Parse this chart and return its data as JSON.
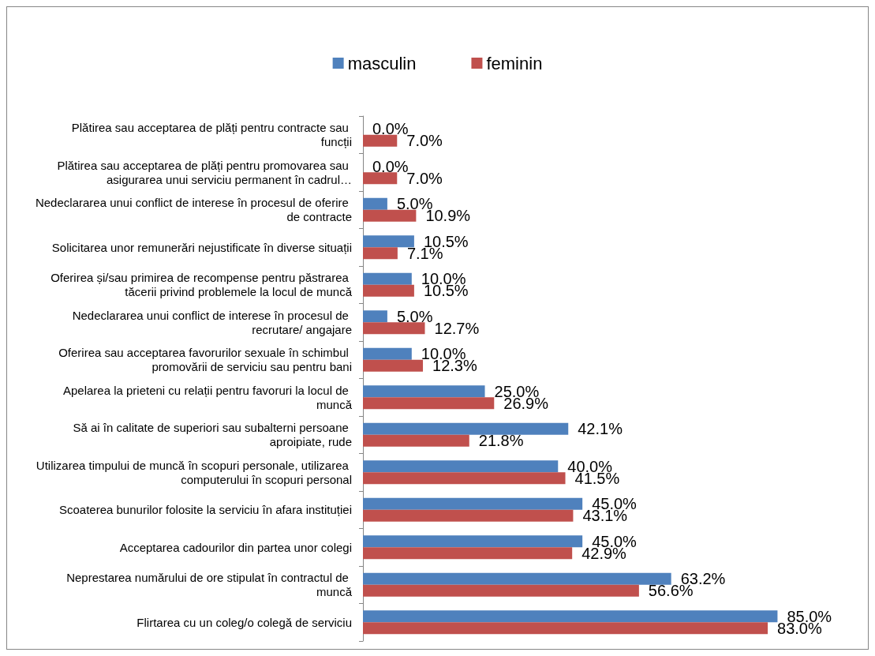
{
  "chart_data": {
    "type": "bar",
    "orientation": "horizontal",
    "categories": [
      "Plătirea sau acceptarea de plăți pentru contracte sau funcții",
      "Plătirea sau acceptarea de plăți pentru promovarea sau asigurarea unui serviciu permanent în cadrul…",
      "Nedeclararea unui conflict de interese în procesul de oferire de contracte",
      "Solicitarea unor remunerări nejustificate în diverse situații",
      "Oferirea și/sau primirea de recompense pentru păstrarea tăcerii privind problemele la locul de muncă",
      "Nedeclararea unui conflict de interese în procesul de recrutare/ angajare",
      "Oferirea sau acceptarea favorurilor sexuale în schimbul promovării de serviciu sau pentru bani",
      "Apelarea la prieteni cu relații pentru favoruri la locul de muncă",
      "Să ai în calitate de superiori sau subalterni persoane aproipiate, rude",
      "Utilizarea timpului de muncă în scopuri personale, utilizarea computerului în scopuri personal",
      "Scoaterea bunurilor folosite la serviciu în afara instituției",
      "Acceptarea cadourilor din partea unor colegi",
      "Neprestarea numărului de ore stipulat în contractul de muncă",
      "Flirtarea cu un coleg/o colegă de serviciu"
    ],
    "series": [
      {
        "name": "masculin",
        "color": "#4f81bd",
        "values": [
          0.0,
          0.0,
          5.0,
          10.5,
          10.0,
          5.0,
          10.0,
          25.0,
          42.1,
          40.0,
          45.0,
          45.0,
          63.2,
          85.0
        ],
        "value_labels": [
          "0.0%",
          "0.0%",
          "5.0%",
          "10.5%",
          "10.0%",
          "5.0%",
          "10.0%",
          "25.0%",
          "42.1%",
          "40.0%",
          "45.0%",
          "45.0%",
          "63.2%",
          "85.0%"
        ]
      },
      {
        "name": "feminin",
        "color": "#c0504d",
        "values": [
          7.0,
          7.0,
          10.9,
          7.1,
          10.5,
          12.7,
          12.3,
          26.9,
          21.8,
          41.5,
          43.1,
          42.9,
          56.6,
          83.0
        ],
        "value_labels": [
          "7.0%",
          "7.0%",
          "10.9%",
          "7.1%",
          "10.5%",
          "12.7%",
          "12.3%",
          "26.9%",
          "21.8%",
          "41.5%",
          "43.1%",
          "42.9%",
          "56.6%",
          "83.0%"
        ]
      }
    ],
    "legend": "top"
  }
}
